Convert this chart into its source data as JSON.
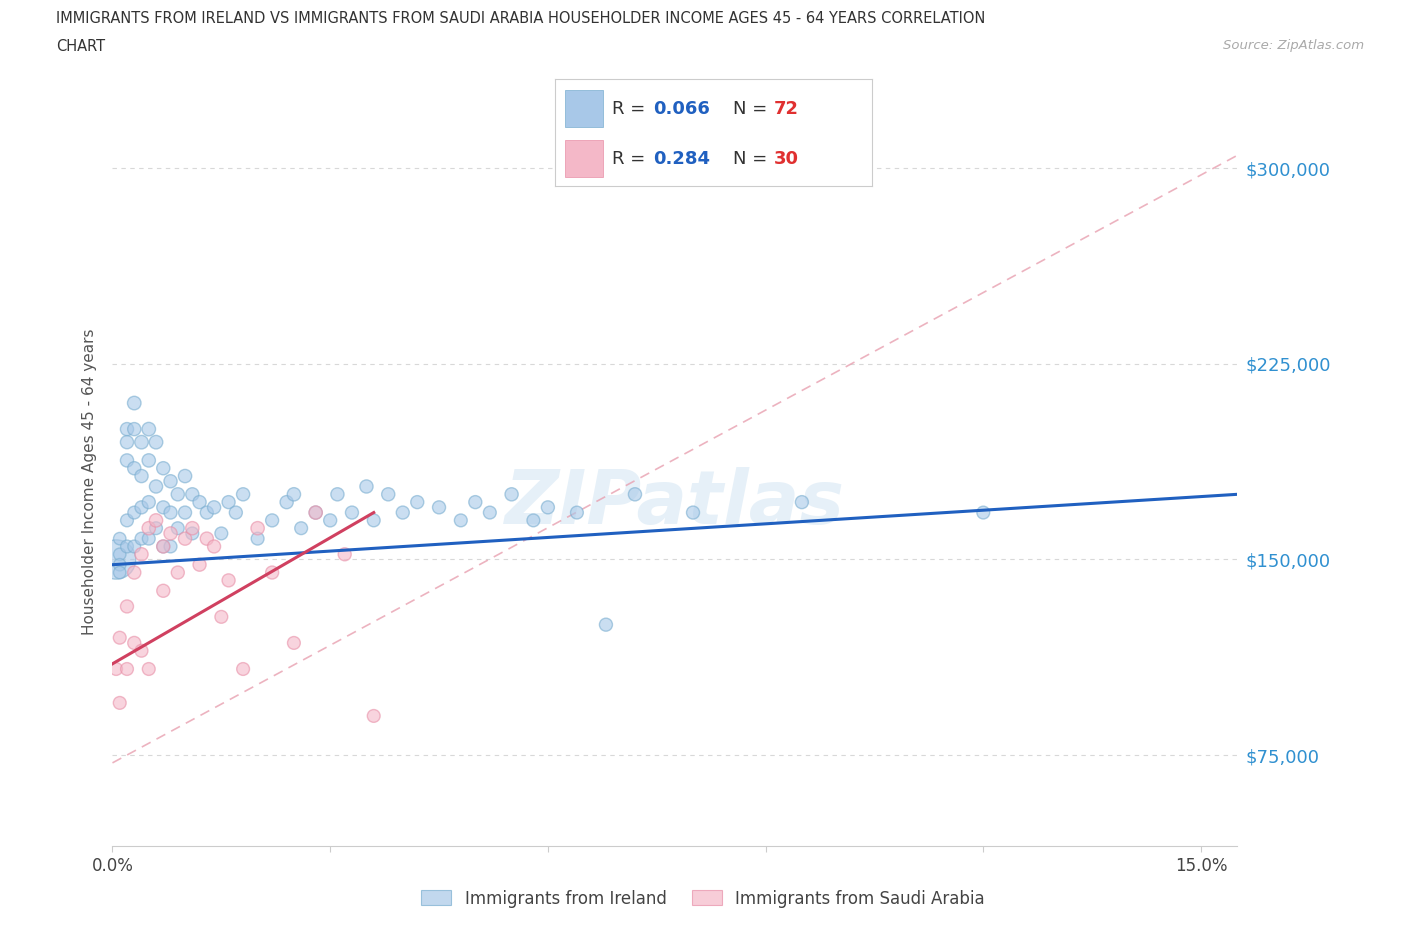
{
  "title_line1": "IMMIGRANTS FROM IRELAND VS IMMIGRANTS FROM SAUDI ARABIA HOUSEHOLDER INCOME AGES 45 - 64 YEARS CORRELATION",
  "title_line2": "CHART",
  "source": "Source: ZipAtlas.com",
  "ylabel": "Householder Income Ages 45 - 64 years",
  "ireland_color": "#a8c8e8",
  "saudi_color": "#f4b8c8",
  "ireland_edge_color": "#7aaed0",
  "saudi_edge_color": "#e890a8",
  "ireland_line_color": "#2060c0",
  "saudi_line_color": "#d04060",
  "dash_line_color": "#e8a0b0",
  "grid_color": "#d8d8d8",
  "R_ireland": 0.066,
  "N_ireland": 72,
  "R_saudi": 0.284,
  "N_saudi": 30,
  "ytick_color": "#3090d0",
  "legend_R_color": "#2060c0",
  "legend_N_color": "#e03030",
  "xlim_min": 0.0,
  "xlim_max": 0.155,
  "ylim_min": 40000,
  "ylim_max": 320000,
  "ireland_x": [
    0.0005,
    0.001,
    0.001,
    0.001,
    0.001,
    0.002,
    0.002,
    0.002,
    0.002,
    0.002,
    0.003,
    0.003,
    0.003,
    0.003,
    0.003,
    0.004,
    0.004,
    0.004,
    0.004,
    0.005,
    0.005,
    0.005,
    0.005,
    0.006,
    0.006,
    0.006,
    0.007,
    0.007,
    0.007,
    0.008,
    0.008,
    0.008,
    0.009,
    0.009,
    0.01,
    0.01,
    0.011,
    0.011,
    0.012,
    0.013,
    0.014,
    0.015,
    0.016,
    0.017,
    0.018,
    0.02,
    0.022,
    0.024,
    0.025,
    0.026,
    0.028,
    0.03,
    0.031,
    0.033,
    0.035,
    0.036,
    0.038,
    0.04,
    0.042,
    0.045,
    0.048,
    0.05,
    0.052,
    0.055,
    0.058,
    0.06,
    0.064,
    0.068,
    0.072,
    0.08,
    0.095,
    0.12
  ],
  "ireland_y": [
    150000,
    152000,
    148000,
    145000,
    158000,
    200000,
    195000,
    188000,
    165000,
    155000,
    210000,
    200000,
    185000,
    168000,
    155000,
    195000,
    182000,
    170000,
    158000,
    200000,
    188000,
    172000,
    158000,
    195000,
    178000,
    162000,
    185000,
    170000,
    155000,
    180000,
    168000,
    155000,
    175000,
    162000,
    182000,
    168000,
    175000,
    160000,
    172000,
    168000,
    170000,
    160000,
    172000,
    168000,
    175000,
    158000,
    165000,
    172000,
    175000,
    162000,
    168000,
    165000,
    175000,
    168000,
    178000,
    165000,
    175000,
    168000,
    172000,
    170000,
    165000,
    172000,
    168000,
    175000,
    165000,
    170000,
    168000,
    125000,
    175000,
    168000,
    172000,
    168000
  ],
  "ireland_sizes": [
    80,
    80,
    80,
    80,
    80,
    90,
    90,
    90,
    85,
    85,
    95,
    90,
    90,
    85,
    85,
    95,
    90,
    88,
    85,
    95,
    92,
    88,
    85,
    95,
    90,
    85,
    90,
    88,
    85,
    90,
    88,
    85,
    90,
    85,
    92,
    88,
    90,
    85,
    90,
    88,
    90,
    85,
    88,
    88,
    90,
    85,
    88,
    90,
    92,
    85,
    88,
    88,
    90,
    88,
    90,
    85,
    90,
    88,
    88,
    88,
    85,
    88,
    85,
    90,
    85,
    88,
    85,
    88,
    90,
    88,
    88,
    85
  ],
  "ireland_big_idx": 0,
  "ireland_big_size": 800,
  "saudi_x": [
    0.0005,
    0.001,
    0.001,
    0.002,
    0.002,
    0.003,
    0.003,
    0.004,
    0.004,
    0.005,
    0.005,
    0.006,
    0.007,
    0.007,
    0.008,
    0.009,
    0.01,
    0.011,
    0.012,
    0.013,
    0.014,
    0.015,
    0.016,
    0.018,
    0.02,
    0.022,
    0.025,
    0.028,
    0.032,
    0.036
  ],
  "saudi_y": [
    108000,
    120000,
    95000,
    132000,
    108000,
    145000,
    118000,
    152000,
    115000,
    162000,
    108000,
    165000,
    155000,
    138000,
    160000,
    145000,
    158000,
    162000,
    148000,
    158000,
    155000,
    128000,
    142000,
    108000,
    162000,
    145000,
    118000,
    168000,
    152000,
    90000
  ],
  "saudi_sizes": [
    85,
    85,
    85,
    88,
    85,
    90,
    88,
    90,
    85,
    92,
    85,
    92,
    90,
    88,
    90,
    88,
    90,
    92,
    88,
    90,
    88,
    85,
    88,
    85,
    92,
    88,
    85,
    92,
    88,
    85
  ],
  "ireland_trend_x": [
    0.0,
    0.155
  ],
  "ireland_trend_y": [
    148000,
    175000
  ],
  "saudi_trend_x": [
    0.0,
    0.036
  ],
  "saudi_trend_y": [
    110000,
    168000
  ],
  "dash_trend_x": [
    0.0,
    0.155
  ],
  "dash_trend_y": [
    72000,
    305000
  ]
}
